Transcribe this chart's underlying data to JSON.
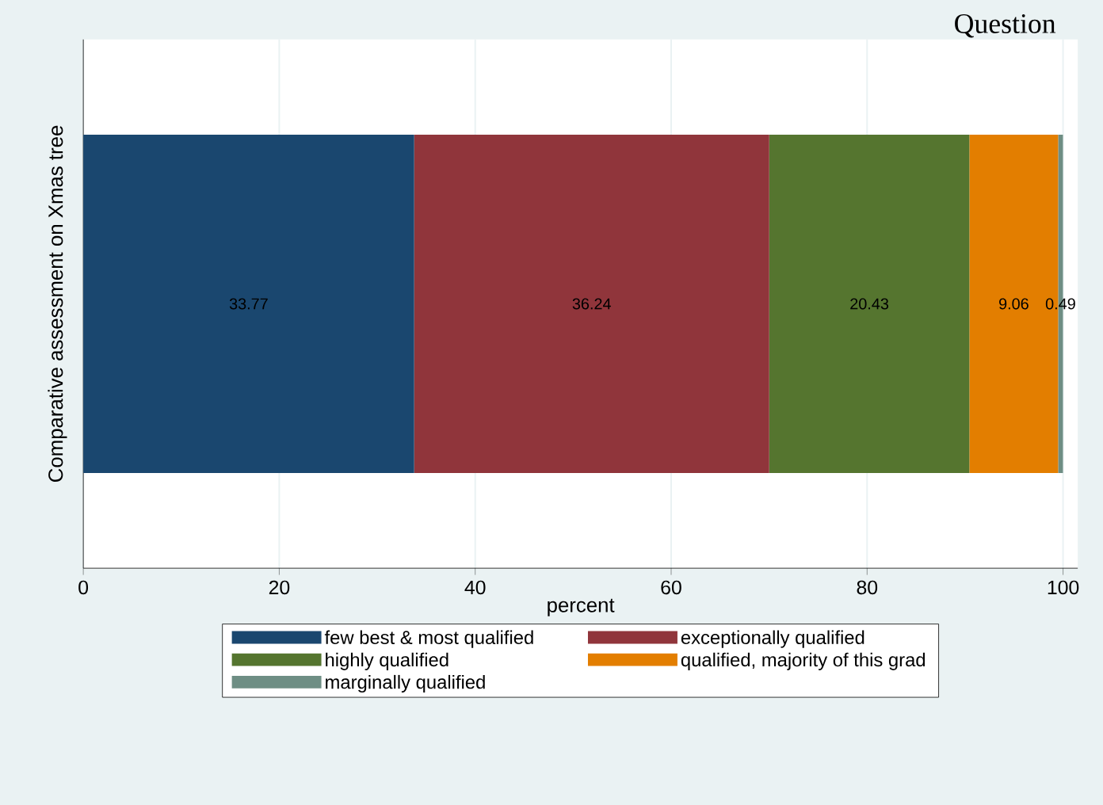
{
  "chart_data": {
    "type": "bar",
    "orientation": "horizontal",
    "stacked": true,
    "data_labels": true,
    "grid": "x",
    "legend": "bottom",
    "ylabel": "Comparative assessment on Xmas tree",
    "xlabel": "percent",
    "annotations": [
      "Question"
    ],
    "categories": [
      null
    ],
    "xlim": [
      0,
      101.5
    ],
    "xticks": [
      0,
      20,
      40,
      60,
      80,
      100
    ],
    "series": [
      {
        "name": "few best & most qualified",
        "color": "#1a476f",
        "values": [
          33.77
        ]
      },
      {
        "name": "exceptionally qualified",
        "color": "#90353b",
        "values": [
          36.24
        ]
      },
      {
        "name": "highly qualified",
        "color": "#55752f",
        "values": [
          20.43
        ]
      },
      {
        "name": "qualified, majority of this grad",
        "color": "#e37e00",
        "values": [
          9.06
        ]
      },
      {
        "name": "marginally qualified",
        "color": "#6e8e84",
        "values": [
          0.49
        ]
      }
    ]
  }
}
